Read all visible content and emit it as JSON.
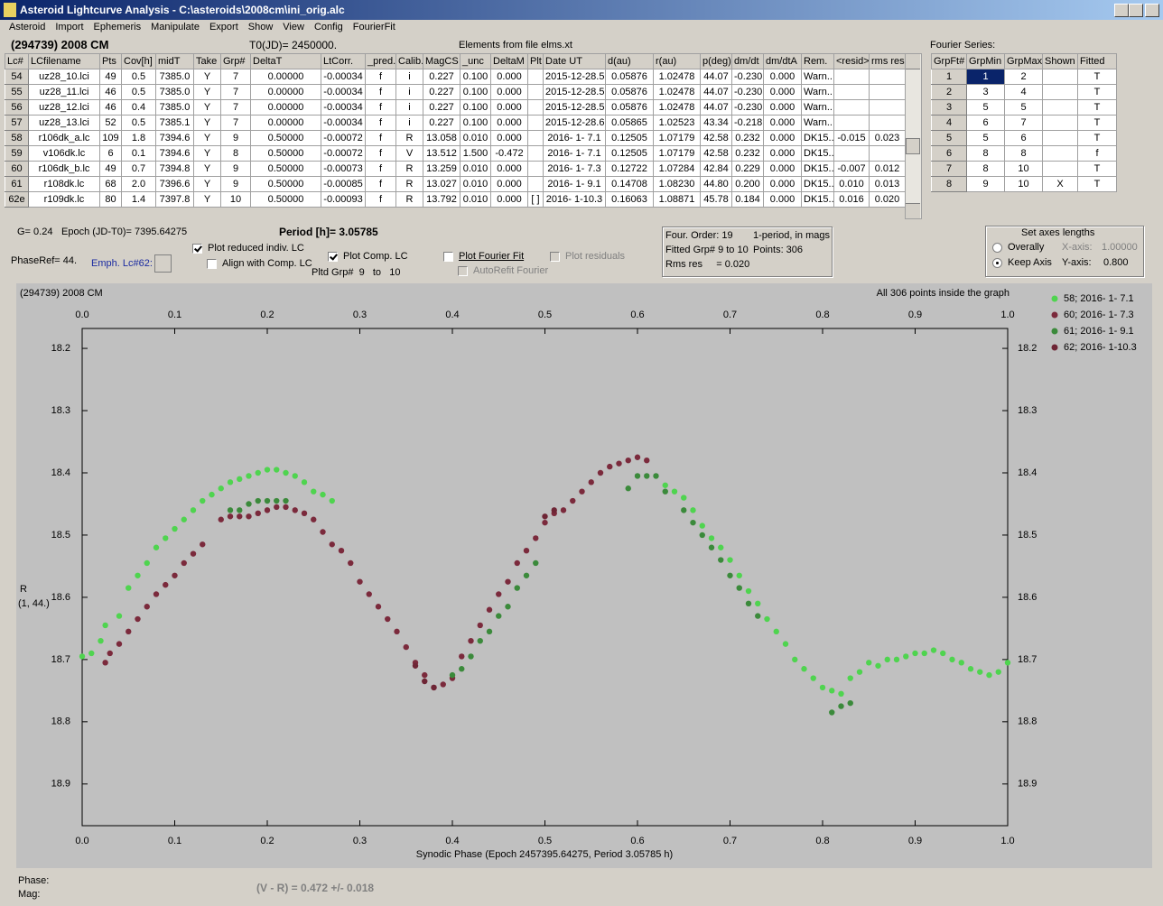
{
  "window": {
    "title": "Asteroid Lightcurve Analysis - C:\\asteroids\\2008cm\\ini_orig.alc"
  },
  "menu": [
    "Asteroid",
    "Import",
    "Ephemeris",
    "Manipulate",
    "Export",
    "Show",
    "View",
    "Config",
    "FourierFit"
  ],
  "header": {
    "object": "(294739) 2008 CM",
    "t0": "T0(JD)= 2450000.",
    "elements": "Elements from file elms.xt",
    "fourier_label": "Fourier Series:"
  },
  "lc_table": {
    "columns": [
      "Lc#",
      "LCfilename",
      "Pts",
      "Cov[h]",
      "midT",
      "Take",
      "Grp#",
      "DeltaT",
      "LtCorr.",
      "_pred.",
      "Calib.",
      "MagCS",
      "_unc",
      "DeltaM",
      "Plt",
      "Date UT",
      "d(au)",
      "r(au)",
      "p(deg)",
      "dm/dt",
      "dm/dtA",
      "Rem.",
      "<resid>",
      "rms res"
    ],
    "rows": [
      [
        "54",
        "uz28_10.lci",
        "49",
        "0.5",
        "7385.0",
        "Y",
        "7",
        "0.00000",
        "-0.00034",
        "f",
        "i",
        "0.227",
        "0.100",
        "0.000",
        null,
        "2015-12-28.5",
        "0.05876",
        "1.02478",
        "44.07",
        "-0.230",
        "0.000",
        "Warn..",
        null,
        null
      ],
      [
        "55",
        "uz28_11.lci",
        "46",
        "0.5",
        "7385.0",
        "Y",
        "7",
        "0.00000",
        "-0.00034",
        "f",
        "i",
        "0.227",
        "0.100",
        "0.000",
        null,
        "2015-12-28.5",
        "0.05876",
        "1.02478",
        "44.07",
        "-0.230",
        "0.000",
        "Warn..",
        null,
        null
      ],
      [
        "56",
        "uz28_12.lci",
        "46",
        "0.4",
        "7385.0",
        "Y",
        "7",
        "0.00000",
        "-0.00034",
        "f",
        "i",
        "0.227",
        "0.100",
        "0.000",
        null,
        "2015-12-28.5",
        "0.05876",
        "1.02478",
        "44.07",
        "-0.230",
        "0.000",
        "Warn..",
        null,
        null
      ],
      [
        "57",
        "uz28_13.lci",
        "52",
        "0.5",
        "7385.1",
        "Y",
        "7",
        "0.00000",
        "-0.00034",
        "f",
        "i",
        "0.227",
        "0.100",
        "0.000",
        null,
        "2015-12-28.6",
        "0.05865",
        "1.02523",
        "43.34",
        "-0.218",
        "0.000",
        "Warn..",
        null,
        null
      ],
      [
        "58",
        "r106dk_a.lc",
        "109",
        "1.8",
        "7394.6",
        "Y",
        "9",
        "0.50000",
        "-0.00072",
        "f",
        "R",
        "13.058",
        "0.010",
        "0.000",
        null,
        "2016- 1- 7.1",
        "0.12505",
        "1.07179",
        "42.58",
        "0.232",
        "0.000",
        "DK15..",
        "-0.015",
        "0.023"
      ],
      [
        "59",
        "v106dk.lc",
        "6",
        "0.1",
        "7394.6",
        "Y",
        "8",
        "0.50000",
        "-0.00072",
        "f",
        "V",
        "13.512",
        "1.500",
        "-0.472",
        null,
        "2016- 1- 7.1",
        "0.12505",
        "1.07179",
        "42.58",
        "0.232",
        "0.000",
        "DK15..",
        null,
        null
      ],
      [
        "60",
        "r106dk_b.lc",
        "49",
        "0.7",
        "7394.8",
        "Y",
        "9",
        "0.50000",
        "-0.00073",
        "f",
        "R",
        "13.259",
        "0.010",
        "0.000",
        null,
        "2016- 1- 7.3",
        "0.12722",
        "1.07284",
        "42.84",
        "0.229",
        "0.000",
        "DK15..",
        "-0.007",
        "0.012"
      ],
      [
        "61",
        "r108dk.lc",
        "68",
        "2.0",
        "7396.6",
        "Y",
        "9",
        "0.50000",
        "-0.00085",
        "f",
        "R",
        "13.027",
        "0.010",
        "0.000",
        null,
        "2016- 1- 9.1",
        "0.14708",
        "1.08230",
        "44.80",
        "0.200",
        "0.000",
        "DK15..",
        "0.010",
        "0.013"
      ],
      [
        "62e",
        "r109dk.lc",
        "80",
        "1.4",
        "7397.8",
        "Y",
        "10",
        "0.50000",
        "-0.00093",
        "f",
        "R",
        "13.792",
        "0.010",
        "0.000",
        "[ ]",
        "2016- 1-10.3",
        "0.16063",
        "1.08871",
        "45.78",
        "0.184",
        "0.000",
        "DK15..",
        "0.016",
        "0.020"
      ]
    ]
  },
  "fourier_table": {
    "columns": [
      "GrpFt#",
      "GrpMin",
      "GrpMax",
      "Shown",
      "Fitted"
    ],
    "rows": [
      [
        "1",
        "1",
        "2",
        null,
        "T"
      ],
      [
        "2",
        "3",
        "4",
        null,
        "T"
      ],
      [
        "3",
        "5",
        "5",
        null,
        "T"
      ],
      [
        "4",
        "6",
        "7",
        null,
        "T"
      ],
      [
        "5",
        "5",
        "6",
        null,
        "T"
      ],
      [
        "6",
        "8",
        "8",
        null,
        "f"
      ],
      [
        "7",
        "8",
        "10",
        null,
        "T"
      ],
      [
        "8",
        "9",
        "10",
        "X",
        "T"
      ]
    ]
  },
  "params": {
    "g": "G= 0.24",
    "epoch": "Epoch (JD-T0)= 7395.64275",
    "period": "Period [h]= 3.05785",
    "phase_ref": "PhaseRef= 44.",
    "emph": "Emph. Lc#62:"
  },
  "options": {
    "plot_reduced": {
      "label": "Plot reduced indiv. LC",
      "checked": true
    },
    "align": {
      "label": "Align with Comp. LC",
      "checked": false
    },
    "plot_comp": {
      "label": "Plot Comp. LC",
      "checked": true
    },
    "pltd_grp": "Pltd Grp#  9   to   10",
    "plot_fourier": {
      "label": "Plot Fourier Fit",
      "checked": false
    },
    "autorefit": {
      "label": "AutoRefit Fourier",
      "checked": false,
      "disabled": true
    },
    "plot_residuals": {
      "label": "Plot residuals",
      "checked": false,
      "disabled": true
    }
  },
  "fit_info": {
    "order": "Four. Order: 19",
    "mode": "1-period, in mags",
    "fitted": "Fitted Grp# 9 to 10",
    "points": "Points: 306",
    "rms": "Rms res     = 0.020"
  },
  "axes_box": {
    "title": "Set axes lengths",
    "overally": {
      "label": "Overally",
      "selected": false
    },
    "keep": {
      "label": "Keep Axis",
      "selected": true
    },
    "x_label": "X-axis:",
    "x_value": "1.00000",
    "y_label": "Y-axis:",
    "y_value": "0.800"
  },
  "chart_data": {
    "type": "scatter",
    "title": "(294739) 2008 CM",
    "annotation": "All 306 points inside the graph",
    "xlabel": "Synodic Phase (Epoch 2457395.64275, Period 3.05785 h)",
    "ylabel": "R",
    "ylabel_note": "(1, 44.)",
    "xlim": [
      0,
      1
    ],
    "ylim": [
      18.168,
      18.967
    ],
    "y_inverted": true,
    "legend": "right",
    "xticks": [
      {
        "value": 0,
        "label": "0.0"
      },
      0.1,
      0.2,
      0.3,
      0.4,
      0.5,
      0.6,
      0.7,
      0.8,
      0.9,
      {
        "value": 1,
        "label": "1.0"
      }
    ],
    "yticks": [
      18.2,
      18.3,
      18.4,
      18.5,
      18.6,
      18.7,
      18.8,
      18.9
    ],
    "series": [
      {
        "name": "58; 2016- 1- 7.1",
        "color": "#4fd44f",
        "x": [
          0.0,
          0.01,
          0.02,
          0.025,
          0.04,
          0.05,
          0.06,
          0.07,
          0.08,
          0.09,
          0.1,
          0.11,
          0.12,
          0.13,
          0.14,
          0.15,
          0.16,
          0.17,
          0.18,
          0.19,
          0.2,
          0.21,
          0.22,
          0.23,
          0.24,
          0.25,
          0.26,
          0.27,
          0.63,
          0.64,
          0.65,
          0.66,
          0.67,
          0.68,
          0.69,
          0.7,
          0.71,
          0.72,
          0.73,
          0.74,
          0.75,
          0.76,
          0.77,
          0.78,
          0.79,
          0.8,
          0.81,
          0.82,
          0.83,
          0.84,
          0.85,
          0.86,
          0.87,
          0.88,
          0.89,
          0.9,
          0.91,
          0.92,
          0.93,
          0.94,
          0.95,
          0.96,
          0.97,
          0.98,
          0.99,
          1.0
        ],
        "values": [
          18.695,
          18.69,
          18.67,
          18.645,
          18.63,
          18.585,
          18.565,
          18.545,
          18.52,
          18.505,
          18.49,
          18.475,
          18.46,
          18.445,
          18.435,
          18.425,
          18.415,
          18.41,
          18.405,
          18.4,
          18.395,
          18.395,
          18.4,
          18.405,
          18.415,
          18.43,
          18.435,
          18.445,
          18.42,
          18.43,
          18.44,
          18.46,
          18.485,
          18.505,
          18.52,
          18.54,
          18.565,
          18.59,
          18.61,
          18.635,
          18.655,
          18.675,
          18.7,
          18.715,
          18.73,
          18.745,
          18.75,
          18.755,
          18.73,
          18.72,
          18.705,
          18.71,
          18.7,
          18.7,
          18.695,
          18.69,
          18.69,
          18.685,
          18.69,
          18.7,
          18.705,
          18.715,
          18.72,
          18.725,
          18.72,
          18.705
        ]
      },
      {
        "name": "60; 2016- 1- 7.3",
        "color": "#7b2a3c",
        "x": [
          0.025,
          0.03,
          0.04,
          0.05,
          0.06,
          0.07,
          0.08,
          0.09,
          0.1,
          0.11,
          0.12,
          0.13,
          0.15,
          0.16,
          0.17,
          0.18,
          0.19,
          0.2,
          0.21,
          0.22,
          0.23,
          0.24,
          0.25,
          0.26,
          0.27,
          0.28,
          0.29,
          0.3,
          0.31,
          0.32,
          0.33,
          0.34,
          0.35,
          0.36,
          0.37,
          0.38,
          0.39,
          0.4,
          0.41,
          0.42,
          0.43,
          0.44,
          0.45,
          0.46,
          0.47,
          0.48,
          0.49,
          0.5,
          0.51,
          0.52,
          0.53,
          0.54,
          0.55,
          0.56,
          0.57,
          0.58,
          0.59,
          0.6,
          0.61
        ],
        "values": [
          18.705,
          18.69,
          18.675,
          18.655,
          18.635,
          18.615,
          18.595,
          18.58,
          18.565,
          18.545,
          18.53,
          18.515,
          18.475,
          18.47,
          18.47,
          18.47,
          18.465,
          18.46,
          18.455,
          18.455,
          18.46,
          18.465,
          18.475,
          18.495,
          18.515,
          18.525,
          18.545,
          18.575,
          18.595,
          18.615,
          18.635,
          18.655,
          18.68,
          18.705,
          18.725,
          18.745,
          18.74,
          18.73,
          18.695,
          18.67,
          18.645,
          18.62,
          18.595,
          18.575,
          18.545,
          18.525,
          18.505,
          18.48,
          18.465,
          18.46,
          18.445,
          18.43,
          18.415,
          18.4,
          18.39,
          18.385,
          18.38,
          18.375,
          18.38
        ]
      },
      {
        "name": "61; 2016- 1- 9.1",
        "color": "#3b8a3b",
        "x": [
          0.16,
          0.17,
          0.18,
          0.19,
          0.2,
          0.21,
          0.22,
          0.4,
          0.41,
          0.42,
          0.43,
          0.44,
          0.45,
          0.46,
          0.47,
          0.48,
          0.49,
          0.59,
          0.6,
          0.61,
          0.62,
          0.63,
          0.65,
          0.66,
          0.67,
          0.68,
          0.69,
          0.7,
          0.71,
          0.72,
          0.73,
          0.81,
          0.82,
          0.83
        ],
        "values": [
          18.46,
          18.46,
          18.45,
          18.445,
          18.445,
          18.445,
          18.445,
          18.725,
          18.715,
          18.695,
          18.67,
          18.655,
          18.63,
          18.615,
          18.585,
          18.565,
          18.545,
          18.425,
          18.405,
          18.405,
          18.405,
          18.43,
          18.46,
          18.48,
          18.5,
          18.52,
          18.54,
          18.565,
          18.585,
          18.61,
          18.63,
          18.785,
          18.775,
          18.77
        ]
      },
      {
        "name": "62; 2016- 1-10.3",
        "color": "#6e2535",
        "x": [
          0.36,
          0.37,
          0.38,
          0.5,
          0.51
        ],
        "values": [
          18.71,
          18.735,
          18.745,
          18.47,
          18.46
        ]
      }
    ]
  },
  "status": {
    "phase": "Phase:",
    "mag": "Mag:",
    "color_index": "(V - R) = 0.472 +/- 0.018"
  }
}
